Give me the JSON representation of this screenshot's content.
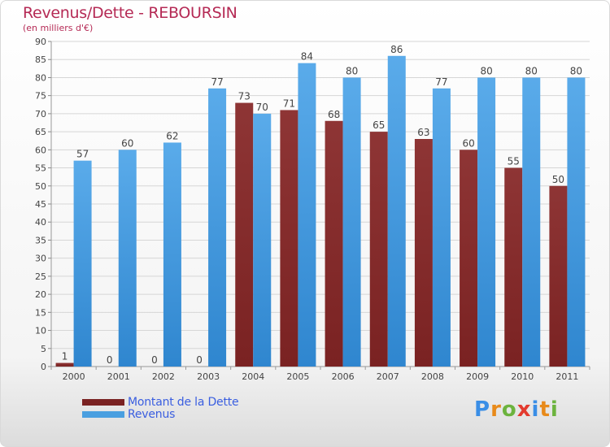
{
  "header": {
    "title": "Revenus/Dette - REBOURSIN",
    "subtitle": "(en milliers d'€)"
  },
  "legend": {
    "dette_label": "Montant de la Dette",
    "revenus_label": "Revenus"
  },
  "logo": {
    "text": "Proxiti",
    "letters": [
      "P",
      "r",
      "o",
      "x",
      "i",
      "t",
      "i"
    ],
    "colors": [
      "#3a8ee6",
      "#e88a1a",
      "#6cb33e",
      "#e33a2e",
      "#3a8ee6",
      "#e88a1a",
      "#6cb33e"
    ]
  },
  "colors": {
    "dette": "#7a2222",
    "revenus": "#4a9fe0",
    "title": "#b52a55",
    "legend_text": "#3a5ee0"
  },
  "chart_data": {
    "type": "bar",
    "title": "Revenus/Dette - REBOURSIN",
    "ylabel": "(en milliers d'€)",
    "xlabel": "",
    "ylim": [
      0,
      90
    ],
    "ytick_step": 5,
    "grid": true,
    "legend_position": "bottom-left",
    "categories": [
      "2000",
      "2001",
      "2002",
      "2003",
      "2004",
      "2005",
      "2006",
      "2007",
      "2008",
      "2009",
      "2010",
      "2011"
    ],
    "series": [
      {
        "name": "Montant de la Dette",
        "values": [
          1,
          0,
          0,
          0,
          73,
          71,
          68,
          65,
          63,
          60,
          55,
          50
        ]
      },
      {
        "name": "Revenus",
        "values": [
          57,
          60,
          62,
          77,
          70,
          84,
          80,
          86,
          77,
          80,
          80,
          80
        ]
      }
    ]
  }
}
